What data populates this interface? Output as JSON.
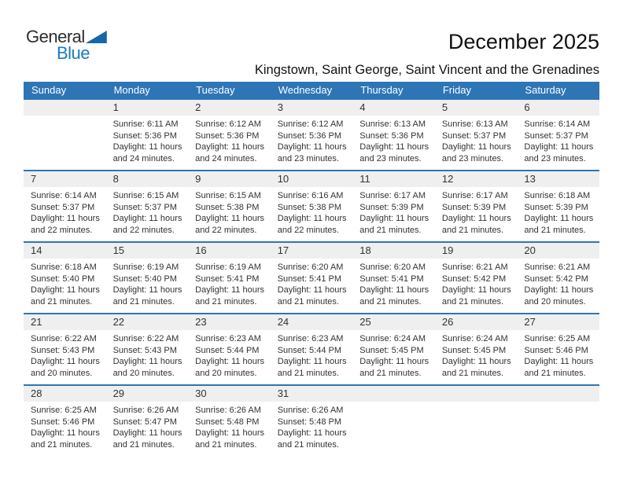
{
  "logo": {
    "part1": "General",
    "part2": "Blue"
  },
  "header": {
    "title": "December 2025",
    "subtitle": "Kingstown, Saint George, Saint Vincent and the Grenadines"
  },
  "colors": {
    "header_blue": "#2e75b6",
    "week_separator_blue": "#2e75b6",
    "day_band_gray": "#efefef",
    "logo_blue": "#1a7ac0",
    "logo_triangle_blue": "#1467a8"
  },
  "calendar": {
    "weekdays": [
      "Sunday",
      "Monday",
      "Tuesday",
      "Wednesday",
      "Thursday",
      "Friday",
      "Saturday"
    ],
    "weeks": [
      [
        null,
        {
          "day": "1",
          "sunrise": "Sunrise: 6:11 AM",
          "sunset": "Sunset: 5:36 PM",
          "daylight": "Daylight: 11 hours and 24 minutes."
        },
        {
          "day": "2",
          "sunrise": "Sunrise: 6:12 AM",
          "sunset": "Sunset: 5:36 PM",
          "daylight": "Daylight: 11 hours and 24 minutes."
        },
        {
          "day": "3",
          "sunrise": "Sunrise: 6:12 AM",
          "sunset": "Sunset: 5:36 PM",
          "daylight": "Daylight: 11 hours and 23 minutes."
        },
        {
          "day": "4",
          "sunrise": "Sunrise: 6:13 AM",
          "sunset": "Sunset: 5:36 PM",
          "daylight": "Daylight: 11 hours and 23 minutes."
        },
        {
          "day": "5",
          "sunrise": "Sunrise: 6:13 AM",
          "sunset": "Sunset: 5:37 PM",
          "daylight": "Daylight: 11 hours and 23 minutes."
        },
        {
          "day": "6",
          "sunrise": "Sunrise: 6:14 AM",
          "sunset": "Sunset: 5:37 PM",
          "daylight": "Daylight: 11 hours and 23 minutes."
        }
      ],
      [
        {
          "day": "7",
          "sunrise": "Sunrise: 6:14 AM",
          "sunset": "Sunset: 5:37 PM",
          "daylight": "Daylight: 11 hours and 22 minutes."
        },
        {
          "day": "8",
          "sunrise": "Sunrise: 6:15 AM",
          "sunset": "Sunset: 5:37 PM",
          "daylight": "Daylight: 11 hours and 22 minutes."
        },
        {
          "day": "9",
          "sunrise": "Sunrise: 6:15 AM",
          "sunset": "Sunset: 5:38 PM",
          "daylight": "Daylight: 11 hours and 22 minutes."
        },
        {
          "day": "10",
          "sunrise": "Sunrise: 6:16 AM",
          "sunset": "Sunset: 5:38 PM",
          "daylight": "Daylight: 11 hours and 22 minutes."
        },
        {
          "day": "11",
          "sunrise": "Sunrise: 6:17 AM",
          "sunset": "Sunset: 5:39 PM",
          "daylight": "Daylight: 11 hours and 21 minutes."
        },
        {
          "day": "12",
          "sunrise": "Sunrise: 6:17 AM",
          "sunset": "Sunset: 5:39 PM",
          "daylight": "Daylight: 11 hours and 21 minutes."
        },
        {
          "day": "13",
          "sunrise": "Sunrise: 6:18 AM",
          "sunset": "Sunset: 5:39 PM",
          "daylight": "Daylight: 11 hours and 21 minutes."
        }
      ],
      [
        {
          "day": "14",
          "sunrise": "Sunrise: 6:18 AM",
          "sunset": "Sunset: 5:40 PM",
          "daylight": "Daylight: 11 hours and 21 minutes."
        },
        {
          "day": "15",
          "sunrise": "Sunrise: 6:19 AM",
          "sunset": "Sunset: 5:40 PM",
          "daylight": "Daylight: 11 hours and 21 minutes."
        },
        {
          "day": "16",
          "sunrise": "Sunrise: 6:19 AM",
          "sunset": "Sunset: 5:41 PM",
          "daylight": "Daylight: 11 hours and 21 minutes."
        },
        {
          "day": "17",
          "sunrise": "Sunrise: 6:20 AM",
          "sunset": "Sunset: 5:41 PM",
          "daylight": "Daylight: 11 hours and 21 minutes."
        },
        {
          "day": "18",
          "sunrise": "Sunrise: 6:20 AM",
          "sunset": "Sunset: 5:41 PM",
          "daylight": "Daylight: 11 hours and 21 minutes."
        },
        {
          "day": "19",
          "sunrise": "Sunrise: 6:21 AM",
          "sunset": "Sunset: 5:42 PM",
          "daylight": "Daylight: 11 hours and 21 minutes."
        },
        {
          "day": "20",
          "sunrise": "Sunrise: 6:21 AM",
          "sunset": "Sunset: 5:42 PM",
          "daylight": "Daylight: 11 hours and 20 minutes."
        }
      ],
      [
        {
          "day": "21",
          "sunrise": "Sunrise: 6:22 AM",
          "sunset": "Sunset: 5:43 PM",
          "daylight": "Daylight: 11 hours and 20 minutes."
        },
        {
          "day": "22",
          "sunrise": "Sunrise: 6:22 AM",
          "sunset": "Sunset: 5:43 PM",
          "daylight": "Daylight: 11 hours and 20 minutes."
        },
        {
          "day": "23",
          "sunrise": "Sunrise: 6:23 AM",
          "sunset": "Sunset: 5:44 PM",
          "daylight": "Daylight: 11 hours and 20 minutes."
        },
        {
          "day": "24",
          "sunrise": "Sunrise: 6:23 AM",
          "sunset": "Sunset: 5:44 PM",
          "daylight": "Daylight: 11 hours and 21 minutes."
        },
        {
          "day": "25",
          "sunrise": "Sunrise: 6:24 AM",
          "sunset": "Sunset: 5:45 PM",
          "daylight": "Daylight: 11 hours and 21 minutes."
        },
        {
          "day": "26",
          "sunrise": "Sunrise: 6:24 AM",
          "sunset": "Sunset: 5:45 PM",
          "daylight": "Daylight: 11 hours and 21 minutes."
        },
        {
          "day": "27",
          "sunrise": "Sunrise: 6:25 AM",
          "sunset": "Sunset: 5:46 PM",
          "daylight": "Daylight: 11 hours and 21 minutes."
        }
      ],
      [
        {
          "day": "28",
          "sunrise": "Sunrise: 6:25 AM",
          "sunset": "Sunset: 5:46 PM",
          "daylight": "Daylight: 11 hours and 21 minutes."
        },
        {
          "day": "29",
          "sunrise": "Sunrise: 6:26 AM",
          "sunset": "Sunset: 5:47 PM",
          "daylight": "Daylight: 11 hours and 21 minutes."
        },
        {
          "day": "30",
          "sunrise": "Sunrise: 6:26 AM",
          "sunset": "Sunset: 5:48 PM",
          "daylight": "Daylight: 11 hours and 21 minutes."
        },
        {
          "day": "31",
          "sunrise": "Sunrise: 6:26 AM",
          "sunset": "Sunset: 5:48 PM",
          "daylight": "Daylight: 11 hours and 21 minutes."
        },
        null,
        null,
        null
      ]
    ]
  }
}
